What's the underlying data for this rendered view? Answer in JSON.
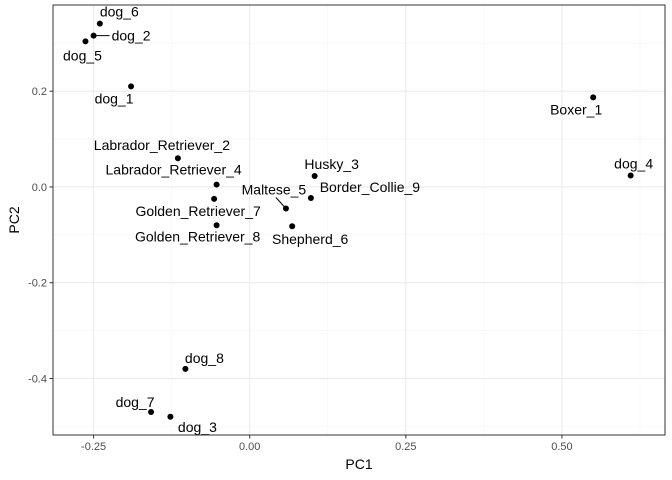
{
  "chart_data": {
    "type": "scatter",
    "xlabel": "PC1",
    "ylabel": "PC2",
    "xlim": [
      -0.315,
      0.665
    ],
    "ylim": [
      -0.518,
      0.38
    ],
    "x_ticks": [
      -0.25,
      0.0,
      0.25,
      0.5
    ],
    "x_tick_labels": [
      "-0.25",
      "0.00",
      "0.25",
      "0.50"
    ],
    "y_ticks": [
      -0.4,
      -0.2,
      0.0,
      0.2
    ],
    "y_tick_labels": [
      "-0.4",
      "-0.2",
      "0.0",
      "0.2"
    ],
    "grid": true,
    "legend": "none",
    "colors": {
      "panel_border": "#333333",
      "grid_major": "#ebebeb",
      "grid_minor": "#f5f5f5",
      "point": "#000000"
    },
    "points": [
      {
        "label": "dog_6",
        "x": -0.24,
        "y": 0.341
      },
      {
        "label": "dog_2",
        "x": -0.25,
        "y": 0.316
      },
      {
        "label": "dog_5",
        "x": -0.263,
        "y": 0.304
      },
      {
        "label": "dog_1",
        "x": -0.19,
        "y": 0.21
      },
      {
        "label": "Boxer_1",
        "x": 0.55,
        "y": 0.187
      },
      {
        "label": "dog_4",
        "x": 0.61,
        "y": 0.024
      },
      {
        "label": "Labrador_Retriever_2",
        "x": -0.115,
        "y": 0.06
      },
      {
        "label": "Labrador_Retriever_4",
        "x": -0.053,
        "y": 0.005
      },
      {
        "label": "Golden_Retriever_7",
        "x": -0.057,
        "y": -0.025
      },
      {
        "label": "Golden_Retriever_8",
        "x": -0.053,
        "y": -0.08
      },
      {
        "label": "Husky_3",
        "x": 0.104,
        "y": 0.023
      },
      {
        "label": "Border_Collie_9",
        "x": 0.098,
        "y": -0.023
      },
      {
        "label": "Maltese_5",
        "x": 0.058,
        "y": -0.045
      },
      {
        "label": "Shepherd_6",
        "x": 0.068,
        "y": -0.082
      },
      {
        "label": "dog_8",
        "x": -0.103,
        "y": -0.38
      },
      {
        "label": "dog_7",
        "x": -0.158,
        "y": -0.47
      },
      {
        "label": "dog_3",
        "x": -0.127,
        "y": -0.48
      }
    ]
  }
}
